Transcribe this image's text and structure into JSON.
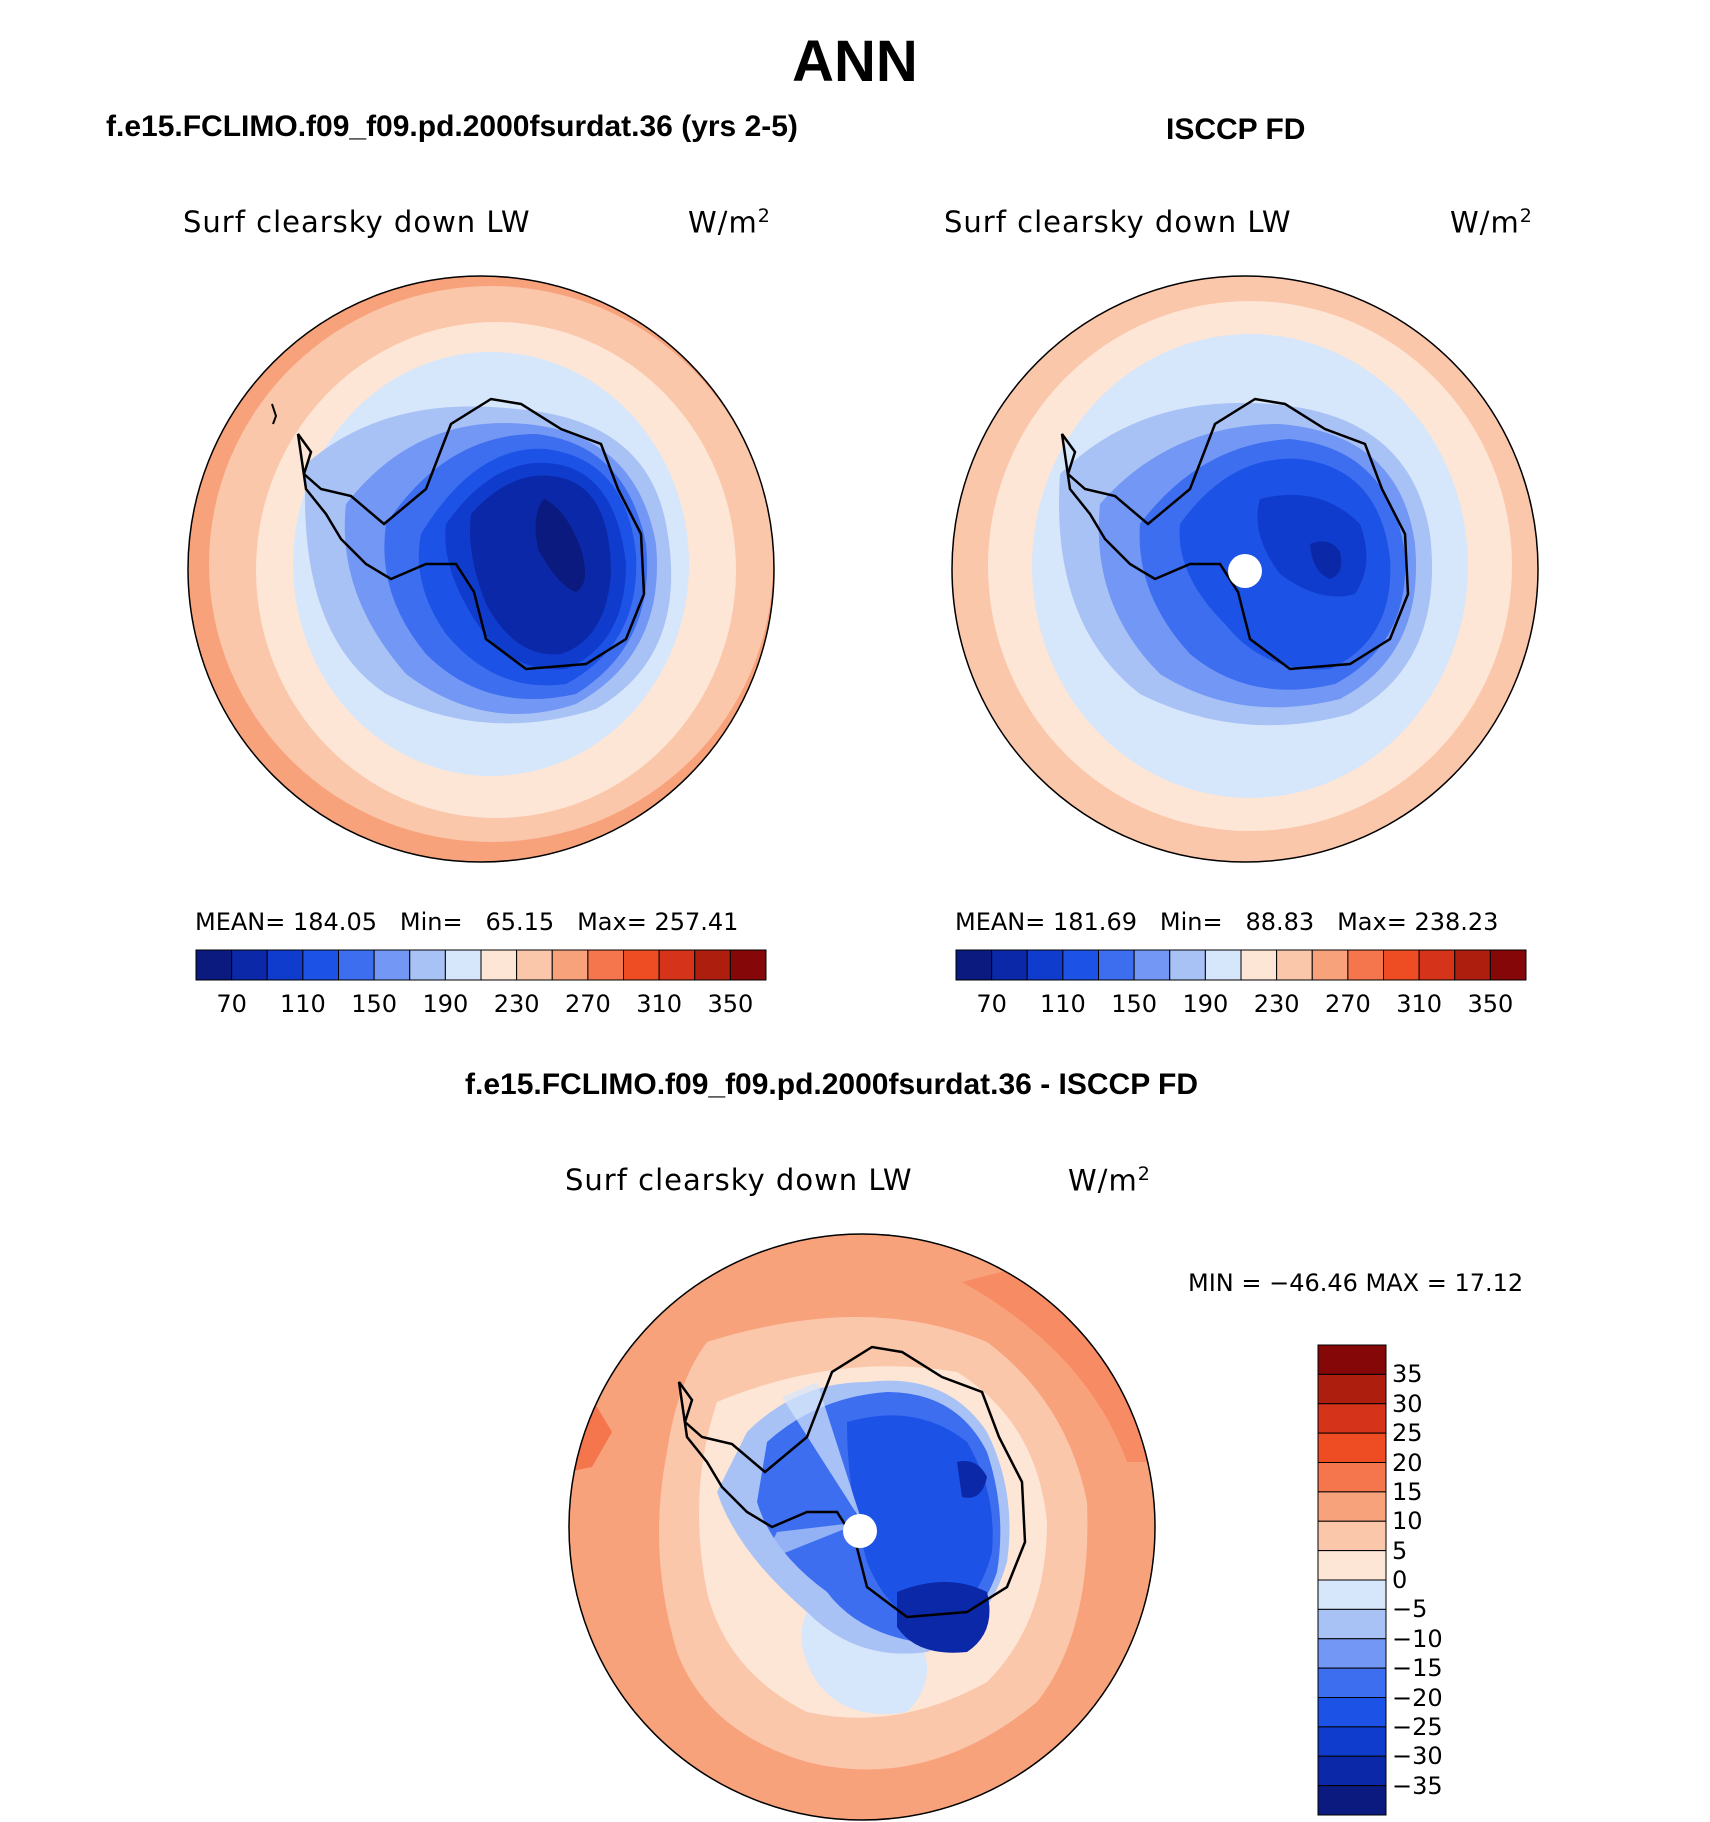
{
  "figure": {
    "title": "ANN",
    "top_left": {
      "case_title": "f.e15.FCLIMO.f09_f09.pd.2000fsurdat.36 (yrs 2-5)",
      "variable": "Surf clearsky down LW",
      "units": "W/m",
      "units_sup": "2",
      "mean_label": "MEAN=",
      "mean_value": "184.05",
      "min_label": "Min=",
      "min_value": "65.15",
      "max_label": "Max=",
      "max_value": "257.41"
    },
    "top_right": {
      "case_title": "ISCCP FD",
      "variable": "Surf clearsky down LW",
      "units": "W/m",
      "units_sup": "2",
      "mean_label": "MEAN=",
      "mean_value": "181.69",
      "min_label": "Min=",
      "min_value": "88.83",
      "max_label": "Max=",
      "max_value": "238.23"
    },
    "bottom": {
      "case_title": "f.e15.FCLIMO.f09_f09.pd.2000fsurdat.36 - ISCCP FD",
      "variable": "Surf clearsky down LW",
      "units": "W/m",
      "units_sup": "2",
      "minmax": "MIN = −46.46 MAX =  17.12"
    },
    "abs_colorbar": {
      "tick_labels": [
        "70",
        "110",
        "150",
        "190",
        "230",
        "270",
        "310",
        "350"
      ],
      "colors": [
        "#0a1a7e",
        "#0b28a8",
        "#0f3ccc",
        "#1c52e6",
        "#3d6ef0",
        "#7397f4",
        "#a9c2f6",
        "#d6e6fb",
        "#fde6d6",
        "#fbc7ab",
        "#f8a27c",
        "#f5754c",
        "#ee4c22",
        "#d6341a",
        "#ae1e0f",
        "#850707"
      ]
    },
    "diff_colorbar": {
      "tick_labels": [
        "35",
        "30",
        "25",
        "20",
        "15",
        "10",
        "5",
        "0",
        "−5",
        "−10",
        "−15",
        "−20",
        "−25",
        "−30",
        "−35"
      ],
      "colors": [
        "#850707",
        "#ae1e0f",
        "#d6341a",
        "#ee4c22",
        "#f5754c",
        "#f8a27c",
        "#fbc7ab",
        "#fde6d6",
        "#d6e6fb",
        "#a9c2f6",
        "#7397f4",
        "#3d6ef0",
        "#1c52e6",
        "#0f3ccc",
        "#0b28a8",
        "#0a1a7e"
      ]
    }
  }
}
